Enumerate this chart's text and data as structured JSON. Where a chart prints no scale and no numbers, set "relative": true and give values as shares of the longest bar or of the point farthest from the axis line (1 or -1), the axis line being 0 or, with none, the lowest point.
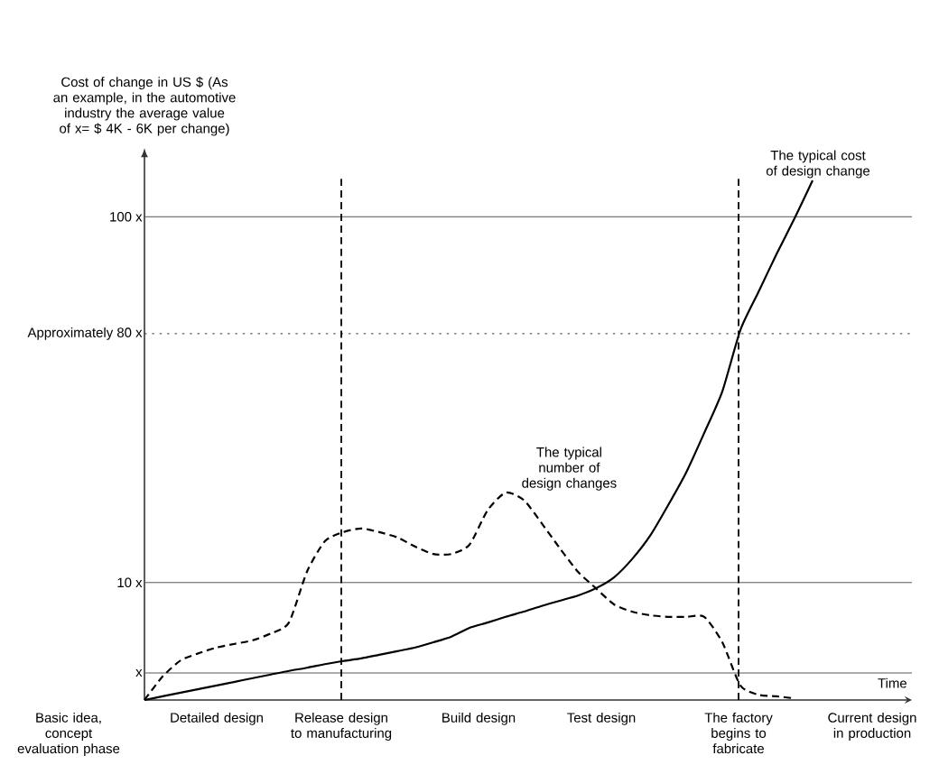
{
  "chart_data": {
    "type": "line",
    "relative": true,
    "ylabel": "Cost of change in US $ (As an example, in the automotive industry the average value of x= $ 4K - 6K  per change)",
    "xlabel": "Time",
    "categories": [
      null,
      null,
      null,
      null,
      null,
      null,
      null,
      null,
      null,
      null,
      null,
      null,
      null,
      null,
      null,
      null,
      null,
      null,
      null,
      null,
      null,
      null,
      null,
      null,
      null,
      null,
      null,
      null,
      null,
      null,
      null,
      null,
      null,
      null,
      null,
      null,
      null,
      null,
      null,
      null,
      null,
      null,
      null
    ],
    "series": [
      {
        "name": "The typical cost of design change",
        "color": "#000000",
        "line_style": "solid",
        "values": [
          0,
          0.007,
          0.014,
          0.021,
          0.028,
          0.035,
          0.042,
          0.049,
          0.056,
          0.062,
          0.069,
          0.075,
          0.08,
          0.087,
          0.094,
          0.101,
          0.111,
          0.122,
          0.139,
          0.149,
          0.16,
          0.17,
          0.181,
          0.191,
          0.201,
          0.215,
          0.236,
          0.271,
          0.316,
          0.375,
          0.438,
          0.514,
          0.594,
          0.712,
          0.785,
          0.858,
          0.927,
          1,
          null,
          null,
          null,
          null,
          null
        ]
      },
      {
        "name": "The typical number of design changes",
        "color": "#000000",
        "line_style": "dashed",
        "values": [
          0,
          0.045,
          0.076,
          0.09,
          0.101,
          0.108,
          0.115,
          0.128,
          0.149,
          0.247,
          0.306,
          0.323,
          0.33,
          0.323,
          0.313,
          0.295,
          0.281,
          0.281,
          0.299,
          0.365,
          0.399,
          0.385,
          0.34,
          0.292,
          0.247,
          0.215,
          0.184,
          0.17,
          0.163,
          0.16,
          0.16,
          0.16,
          0.111,
          0.028,
          0.01,
          0.007,
          0.003,
          null,
          null,
          null,
          null,
          null,
          null
        ]
      }
    ],
    "ref_lines": [
      {
        "axis": "y",
        "value": 0.052,
        "label": "x",
        "color": "#555555",
        "line_style": "solid"
      },
      {
        "axis": "y",
        "value": 0.226,
        "label": "10 x",
        "color": "#555555",
        "line_style": "solid"
      },
      {
        "axis": "y",
        "value": 0.705,
        "label": "Approximately 80 x",
        "color": "#333333",
        "line_style": "dotted"
      },
      {
        "axis": "y",
        "value": 0.93,
        "label": "100 x",
        "color": "#555555",
        "line_style": "solid"
      }
    ],
    "annotations": [
      "Basic idea, concept evaluation phase",
      "Detailed design",
      "Release design to manufacturing",
      "Build design",
      "Test design",
      "The factory begins to fabricate",
      "Current design in production"
    ]
  }
}
